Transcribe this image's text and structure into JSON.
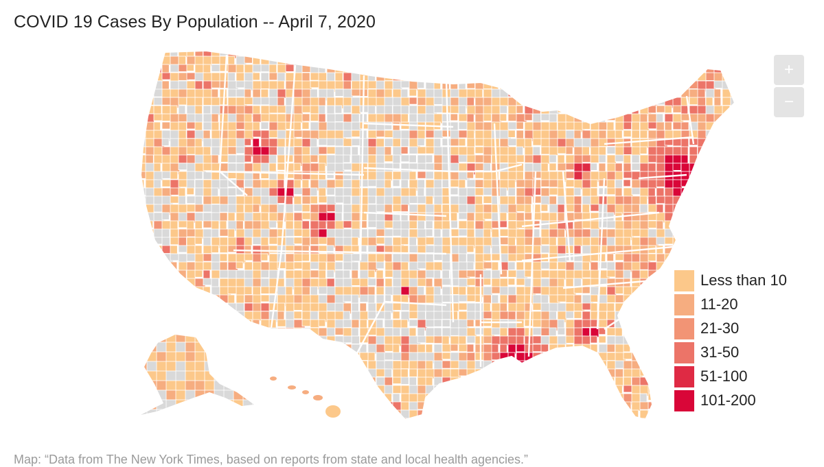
{
  "title": "COVID 19 Cases By Population -- April 7, 2020",
  "zoom": {
    "in_label": "+",
    "out_label": "−"
  },
  "legend": {
    "items": [
      {
        "label": "Less than 10",
        "color": "#fcc88a"
      },
      {
        "label": "11-20",
        "color": "#f6ad80"
      },
      {
        "label": "21-30",
        "color": "#f29475"
      },
      {
        "label": "31-50",
        "color": "#ec7468"
      },
      {
        "label": "51-100",
        "color": "#df2a44"
      },
      {
        "label": "101-200",
        "color": "#d90638"
      }
    ],
    "no_data_color": "#d9d9d9"
  },
  "source": "Map: “Data from The New York Times, based on reports from state and local health agencies.”"
}
